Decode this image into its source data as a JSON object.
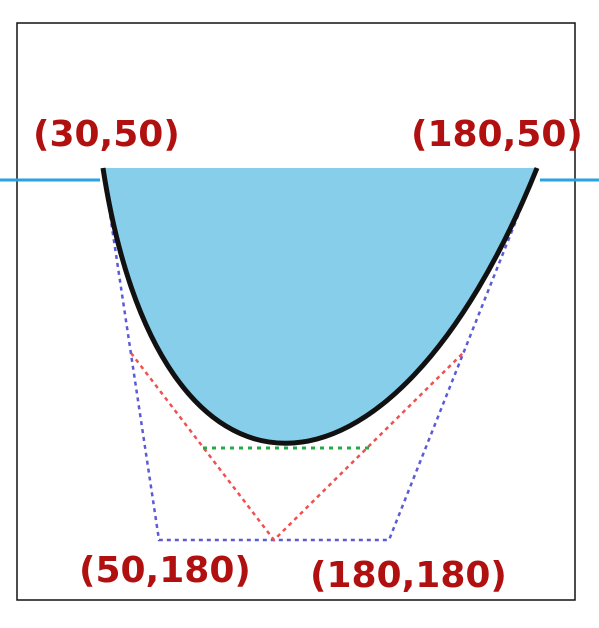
{
  "labels": {
    "top_left": "(30,50)",
    "top_right": "(180,50)",
    "bottom_left": "(50,180)",
    "bottom_right": "(180,180)"
  },
  "colors": {
    "fill": "#87CEEB",
    "curve": "#111111",
    "frame": "#111111",
    "guide_line": "#29a3e0",
    "control_polygon": "#5b5bd6",
    "construction_lines": "#f05050",
    "midpoint_segment": "#22aa44",
    "label_text": "#b01010"
  }
}
